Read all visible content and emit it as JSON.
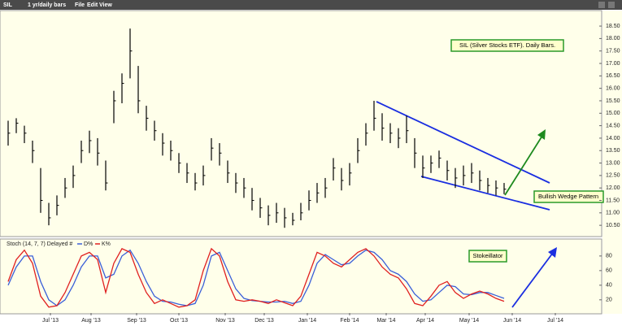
{
  "toolbar": {
    "symbol": "SIL",
    "period": "1 yr/daily bars",
    "menu": [
      "File",
      "Edit",
      "View"
    ]
  },
  "chart_data": [
    {
      "type": "ohlc",
      "color": "#000000",
      "annotations": [
        "SIL (Silver Stocks ETF). Daily Bars.",
        "Bullish Wedge Pattern"
      ],
      "xlim": [
        -1,
        73
      ],
      "ylim": [
        10.08,
        19.09
      ],
      "yticks": [
        {
          "value": 10.5,
          "label": "10.50"
        },
        {
          "value": 11,
          "label": "11.00"
        },
        {
          "value": 11.5,
          "label": "11.50"
        },
        {
          "value": 12,
          "label": "12.00"
        },
        {
          "value": 12.5,
          "label": "12.50"
        },
        {
          "value": 13,
          "label": "13.00"
        },
        {
          "value": 13.5,
          "label": "13.50"
        },
        {
          "value": 14,
          "label": "14.00"
        },
        {
          "value": 14.5,
          "label": "14.50"
        },
        {
          "value": 15,
          "label": "15.00"
        },
        {
          "value": 15.5,
          "label": "15.50"
        },
        {
          "value": 16,
          "label": "16.00"
        },
        {
          "value": 16.5,
          "label": "16.50"
        },
        {
          "value": 17,
          "label": "17.00"
        },
        {
          "value": 17.5,
          "label": "17.50"
        },
        {
          "value": 18,
          "label": "18.00"
        },
        {
          "value": 18.5,
          "label": "18.50"
        }
      ],
      "high": [
        14.7,
        14.8,
        14.5,
        13.9,
        12.8,
        11.4,
        11.7,
        12.4,
        12.9,
        13.9,
        14.3,
        14.0,
        13.1,
        15.9,
        16.6,
        18.4,
        16.9,
        15.3,
        14.7,
        14.2,
        13.9,
        13.4,
        13.0,
        12.6,
        12.9,
        14.0,
        13.8,
        13.1,
        12.6,
        12.4,
        12.0,
        11.6,
        11.3,
        11.4,
        11.2,
        11.0,
        11.4,
        11.9,
        12.2,
        12.4,
        13.2,
        12.8,
        13.0,
        14.0,
        14.6,
        15.5,
        15.0,
        14.6,
        14.4,
        14.9,
        14.0,
        13.3,
        13.3,
        13.5,
        13.1,
        12.8,
        12.9,
        13.0,
        12.7,
        12.4,
        12.3,
        12.2
      ],
      "low": [
        13.7,
        14.2,
        13.8,
        13.0,
        11.0,
        10.5,
        10.9,
        11.6,
        12.0,
        13.0,
        13.4,
        12.9,
        11.9,
        14.6,
        15.4,
        16.4,
        15.0,
        14.3,
        13.9,
        13.3,
        13.1,
        12.6,
        12.2,
        11.9,
        12.1,
        13.1,
        12.9,
        12.2,
        11.8,
        11.6,
        11.1,
        10.8,
        10.5,
        10.6,
        10.4,
        10.5,
        10.7,
        11.1,
        11.4,
        11.6,
        12.3,
        11.9,
        12.1,
        13.0,
        13.7,
        14.3,
        13.9,
        13.8,
        13.6,
        13.8,
        12.8,
        12.4,
        12.6,
        12.8,
        12.3,
        12.0,
        12.1,
        12.2,
        11.9,
        11.8,
        11.7,
        11.75
      ],
      "close": [
        14.2,
        14.6,
        14.2,
        13.5,
        11.5,
        10.8,
        11.3,
        12.0,
        12.5,
        13.5,
        13.9,
        13.4,
        12.2,
        15.5,
        16.2,
        17.5,
        15.5,
        14.8,
        14.3,
        13.8,
        13.5,
        13.0,
        12.6,
        12.2,
        12.5,
        13.6,
        13.4,
        12.6,
        12.2,
        12.0,
        11.5,
        11.2,
        10.9,
        11.0,
        10.8,
        10.7,
        11.0,
        11.5,
        11.8,
        12.0,
        12.8,
        12.3,
        12.6,
        13.5,
        14.2,
        14.8,
        14.4,
        14.2,
        14.0,
        14.3,
        13.4,
        12.8,
        13.0,
        13.2,
        12.7,
        12.4,
        12.5,
        12.6,
        12.3,
        12.1,
        12.0,
        11.95
      ]
    },
    {
      "type": "line",
      "title": "Stoch (14, 7, 7) Delayed #",
      "annotations": [
        "Stokeillator"
      ],
      "xlim": [
        -1,
        73
      ],
      "ylim": [
        2,
        101
      ],
      "yticks": [
        20,
        40,
        60,
        80
      ],
      "xticks": [
        {
          "value": 5.2,
          "label": "Jul '13"
        },
        {
          "value": 10.2,
          "label": "Aug '13"
        },
        {
          "value": 15.8,
          "label": "Sep '13"
        },
        {
          "value": 21,
          "label": "Oct '13"
        },
        {
          "value": 26.7,
          "label": "Nov '13"
        },
        {
          "value": 31.5,
          "label": "Dec '13"
        },
        {
          "value": 36.8,
          "label": "Jan '14"
        },
        {
          "value": 42,
          "label": "Feb '14"
        },
        {
          "value": 46.5,
          "label": "Mar '14"
        },
        {
          "value": 51.3,
          "label": "Apr '14"
        },
        {
          "value": 56.7,
          "label": "May '14"
        },
        {
          "value": 62,
          "label": "Jun '14"
        },
        {
          "value": 67.3,
          "label": "Jul '14"
        }
      ],
      "series": [
        {
          "name": "D%",
          "color": "#3a5fd8",
          "values": [
            40,
            65,
            80,
            80,
            45,
            20,
            12,
            20,
            40,
            65,
            80,
            80,
            50,
            55,
            80,
            88,
            70,
            45,
            25,
            18,
            17,
            14,
            12,
            15,
            40,
            80,
            85,
            60,
            35,
            22,
            19,
            18,
            17,
            17,
            18,
            15,
            18,
            40,
            70,
            82,
            75,
            68,
            70,
            80,
            88,
            85,
            75,
            60,
            55,
            45,
            28,
            18,
            20,
            30,
            40,
            38,
            28,
            27,
            30,
            30,
            26,
            22
          ]
        },
        {
          "name": "K%",
          "color": "#e02020",
          "values": [
            45,
            75,
            88,
            70,
            25,
            10,
            12,
            30,
            55,
            80,
            85,
            75,
            30,
            70,
            90,
            85,
            55,
            30,
            15,
            20,
            15,
            10,
            12,
            20,
            60,
            90,
            80,
            45,
            20,
            18,
            20,
            18,
            15,
            20,
            16,
            12,
            25,
            55,
            85,
            80,
            70,
            65,
            75,
            85,
            90,
            80,
            65,
            55,
            50,
            35,
            15,
            12,
            25,
            40,
            45,
            30,
            22,
            28,
            32,
            28,
            22,
            18
          ]
        }
      ]
    }
  ]
}
